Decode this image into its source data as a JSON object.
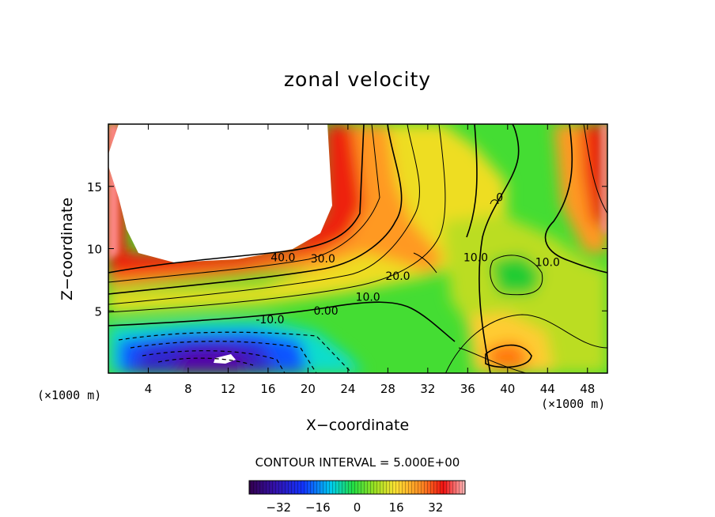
{
  "chart_data": {
    "type": "heatmap",
    "title": "zonal velocity",
    "xlabel": "X−coordinate",
    "ylabel": "Z−coordinate",
    "x_unit": "(×1000 m)",
    "xlim": [
      0,
      50
    ],
    "ylim": [
      0,
      20
    ],
    "x_ticks": [
      4,
      8,
      12,
      16,
      20,
      24,
      28,
      32,
      36,
      40,
      44,
      48
    ],
    "y_ticks": [
      5,
      10,
      15
    ],
    "contour_interval_text": "CONTOUR INTERVAL =  5.000E+00",
    "colorbar": {
      "range": [
        -44,
        44
      ],
      "tick_values": [
        -32,
        -16,
        0,
        16,
        32
      ],
      "tick_labels": [
        "−32",
        "−16",
        "0",
        "16",
        "32"
      ]
    },
    "contour_labels": [
      {
        "text": "40.0",
        "x": 17.5,
        "y": 9.0
      },
      {
        "text": "30.0",
        "x": 21.5,
        "y": 8.9
      },
      {
        "text": "20.0",
        "x": 29.0,
        "y": 7.5
      },
      {
        "text": "10.0",
        "x": 26.0,
        "y": 5.8
      },
      {
        "text": "10.0",
        "x": 36.8,
        "y": 9.0
      },
      {
        "text": "10.0",
        "x": 44.0,
        "y": 8.6
      },
      {
        "text": "0.00",
        "x": 21.8,
        "y": 4.7
      },
      {
        "text": "-10.0",
        "x": 16.2,
        "y": 4.0
      },
      {
        "text": "0",
        "x": 39.2,
        "y": 13.8
      }
    ]
  },
  "colors": {
    "strong_positive": "#ee1111",
    "weak_positive": "#ffcc33",
    "zero": "#22dd22",
    "negative": "#1111cc",
    "strong_negative": "#6600aa"
  }
}
